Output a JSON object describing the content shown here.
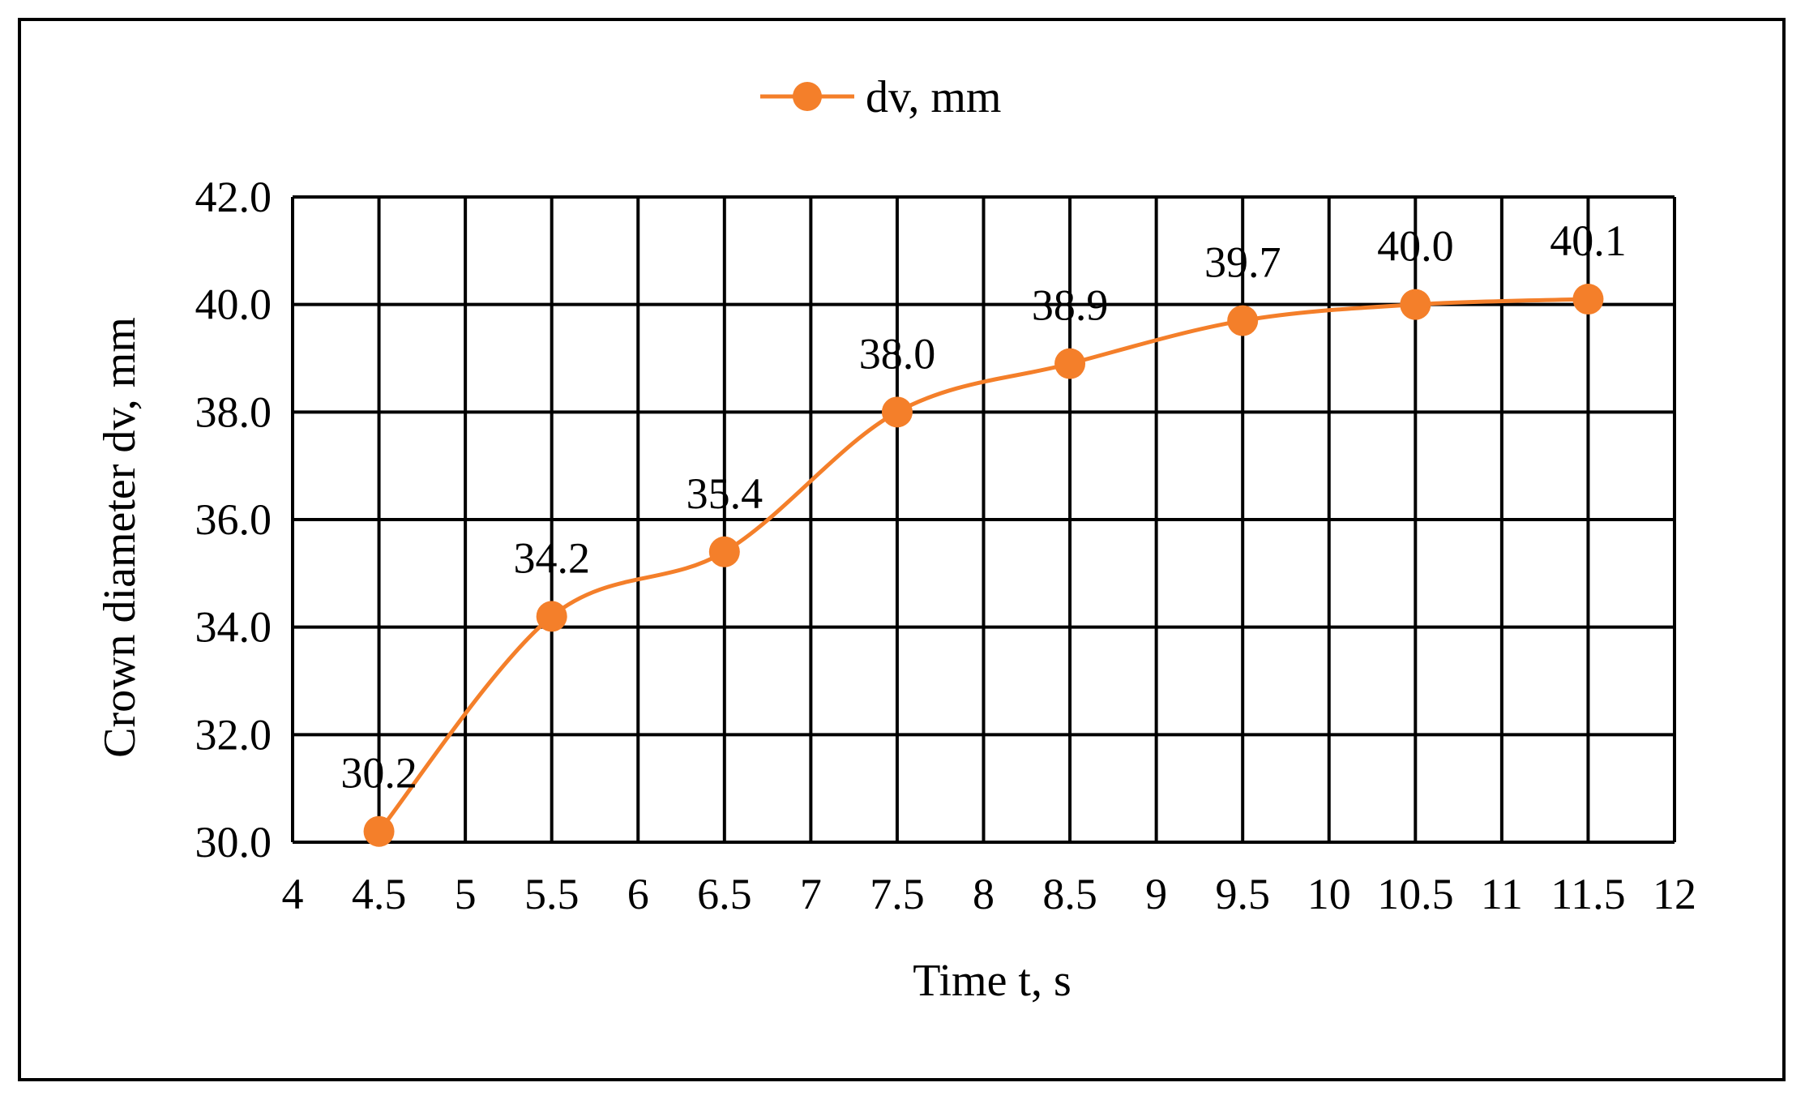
{
  "chart_data": {
    "type": "line",
    "title": "",
    "xlabel": "Time t, s",
    "ylabel": "Crown diameter dv, mm",
    "xlim": [
      4,
      12
    ],
    "ylim": [
      30.0,
      42.0
    ],
    "x_ticks": [
      4,
      4.5,
      5,
      5.5,
      6,
      6.5,
      7,
      7.5,
      8,
      8.5,
      9,
      9.5,
      10,
      10.5,
      11,
      11.5,
      12
    ],
    "x_tick_labels": [
      "4",
      "4.5",
      "5",
      "5.5",
      "6",
      "6.5",
      "7",
      "7.5",
      "8",
      "8.5",
      "9",
      "9.5",
      "10",
      "10.5",
      "11",
      "11.5",
      "12"
    ],
    "y_ticks": [
      30,
      32,
      34,
      36,
      38,
      40,
      42
    ],
    "y_tick_labels": [
      "30.0",
      "32.0",
      "34.0",
      "36.0",
      "38.0",
      "40.0",
      "42.0"
    ],
    "grid": true,
    "smooth": true,
    "legend": {
      "position": "top-center",
      "visible": true
    },
    "series": [
      {
        "name": "dv, mm",
        "color": "#F47F2A",
        "marker": "circle",
        "x": [
          4.5,
          5.5,
          6.5,
          7.5,
          8.5,
          9.5,
          10.5,
          11.5
        ],
        "y": [
          30.2,
          34.2,
          35.4,
          38.0,
          38.9,
          39.7,
          40.0,
          40.1
        ],
        "data_labels": [
          "30.2",
          "34.2",
          "35.4",
          "38.0",
          "38.9",
          "39.7",
          "40.0",
          "40.1"
        ]
      }
    ]
  }
}
